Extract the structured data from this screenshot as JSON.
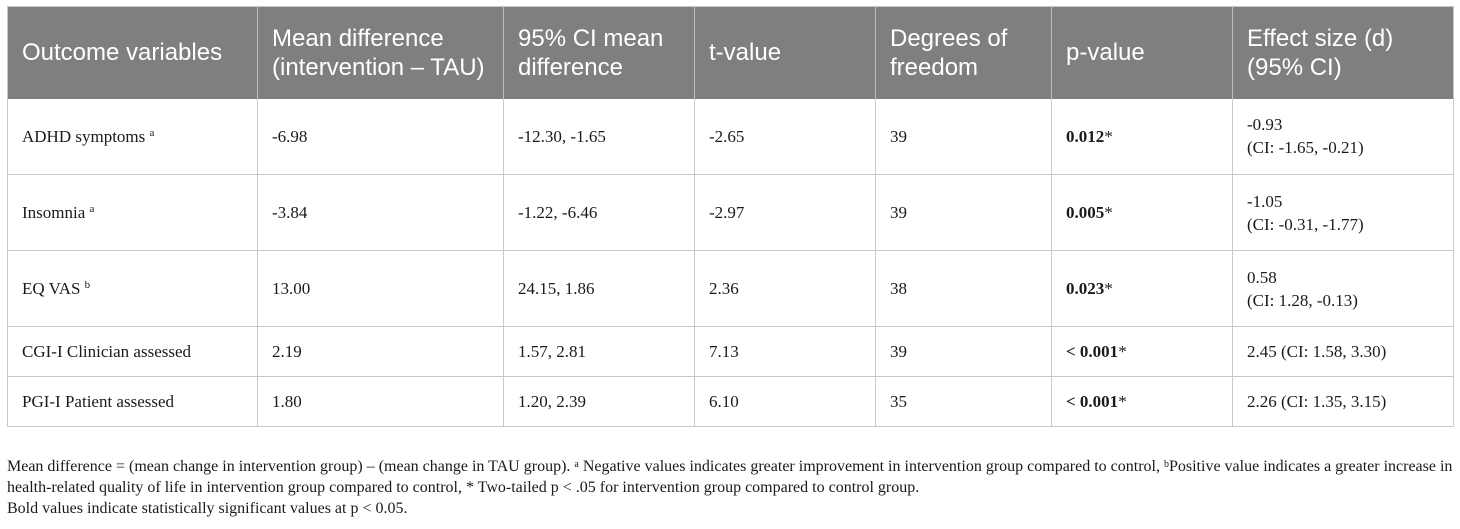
{
  "table": {
    "headers": [
      "Outcome variables",
      "Mean difference (intervention – TAU)",
      "95% CI mean difference",
      "t-value",
      "Degrees of freedom",
      "p-value",
      "Effect size (d) (95% CI)"
    ],
    "rows": [
      {
        "outcome": "ADHD symptoms",
        "sup": "a",
        "mean_diff": "-6.98",
        "ci": "-12.30, -1.65",
        "t": "-2.65",
        "df": "39",
        "p": "0.012",
        "p_star": "*",
        "effect_1": "-0.93",
        "effect_2": "(CI: -1.65, -0.21)"
      },
      {
        "outcome": "Insomnia",
        "sup": "a",
        "mean_diff": "-3.84",
        "ci": "-1.22, -6.46",
        "t": "-2.97",
        "df": "39",
        "p": "0.005",
        "p_star": "*",
        "effect_1": "-1.05",
        "effect_2": "(CI: -0.31, -1.77)"
      },
      {
        "outcome": "EQ VAS",
        "sup": "b",
        "mean_diff": "13.00",
        "ci": "24.15, 1.86",
        "t": "2.36",
        "df": "38",
        "p": "0.023",
        "p_star": "*",
        "effect_1": "0.58",
        "effect_2": "(CI: 1.28, -0.13)"
      },
      {
        "outcome": "CGI-I Clinician assessed",
        "mean_diff": "2.19",
        "ci": "1.57, 2.81",
        "t": "7.13",
        "df": "39",
        "p": "< 0.001",
        "p_star": "*",
        "effect_1": "2.45 (CI: 1.58, 3.30)"
      },
      {
        "outcome": "PGI-I Patient assessed",
        "mean_diff": "1.80",
        "ci": "1.20, 2.39",
        "t": "6.10",
        "df": "35",
        "p": "< 0.001",
        "p_star": "*",
        "effect_1": "2.26 (CI: 1.35, 3.15)"
      }
    ]
  },
  "notes": {
    "line1_a": "Mean difference = (mean change in intervention group) – (mean change in TAU group).",
    "sup_a": "a",
    "line1_b": " Negative values indicates greater improvement in intervention group compared to control,",
    "sup_b": "b",
    "line1_c": "Positive value indicates a greater increase in health-related quality of life in intervention group compared to control, * Two-tailed p < .05 for intervention group compared to control group.",
    "line2": "Bold values indicate statistically significant values at p < 0.05."
  }
}
